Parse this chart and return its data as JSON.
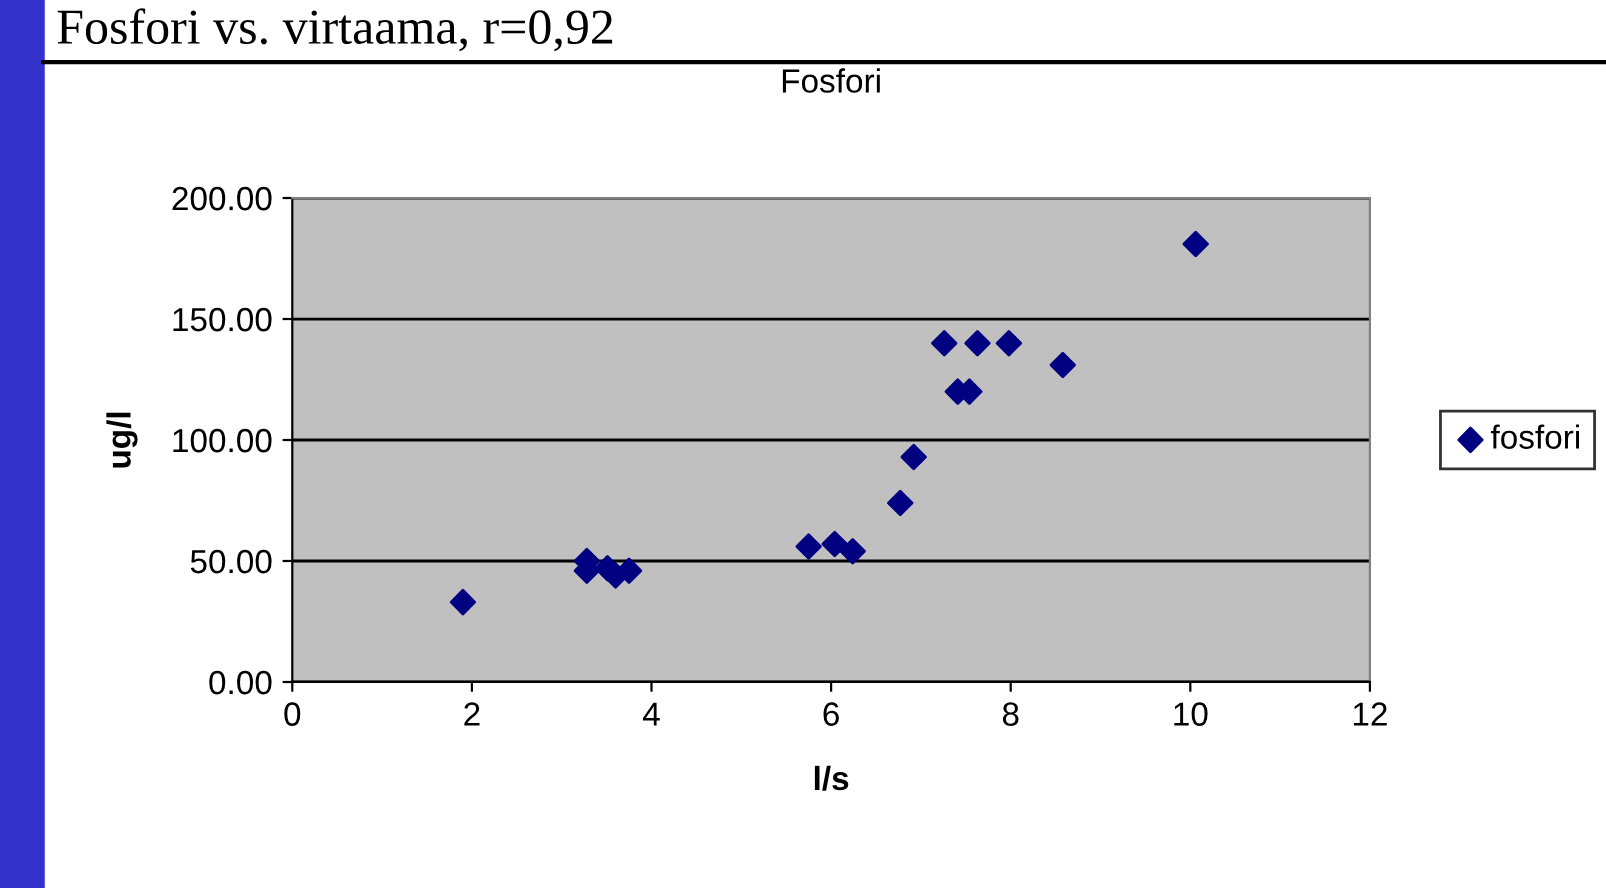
{
  "chart_data": {
    "type": "scatter",
    "title": "Fosfori",
    "xlabel": "l/s",
    "ylabel": "ug/l",
    "annotations": [
      "Fosfori vs. virtaama, r=0,92"
    ],
    "x": [
      1.9,
      3.28,
      3.28,
      3.51,
      3.6,
      3.75,
      5.75,
      6.04,
      6.24,
      6.77,
      6.92,
      7.26,
      7.63,
      7.98,
      7.41,
      7.54,
      8.58,
      10.06
    ],
    "series": [
      {
        "name": "fosfori",
        "color": "#000080",
        "values": [
          33,
          50,
          46,
          47,
          44,
          46,
          56,
          57,
          54,
          74,
          93,
          140,
          140,
          140,
          120,
          120,
          131,
          181
        ]
      }
    ],
    "xlim": [
      0,
      12
    ],
    "xticks": [
      0,
      2,
      4,
      6,
      8,
      10,
      12
    ],
    "ylim": [
      0,
      200
    ],
    "yticks": [
      {
        "value": 0,
        "label": "0.00"
      },
      {
        "value": 50,
        "label": "50.00"
      },
      {
        "value": 100,
        "label": "100.00"
      },
      {
        "value": 150,
        "label": "150.00"
      },
      {
        "value": 200,
        "label": "200.00"
      }
    ],
    "grid": "y",
    "legend": "right",
    "marker": "diamond"
  }
}
